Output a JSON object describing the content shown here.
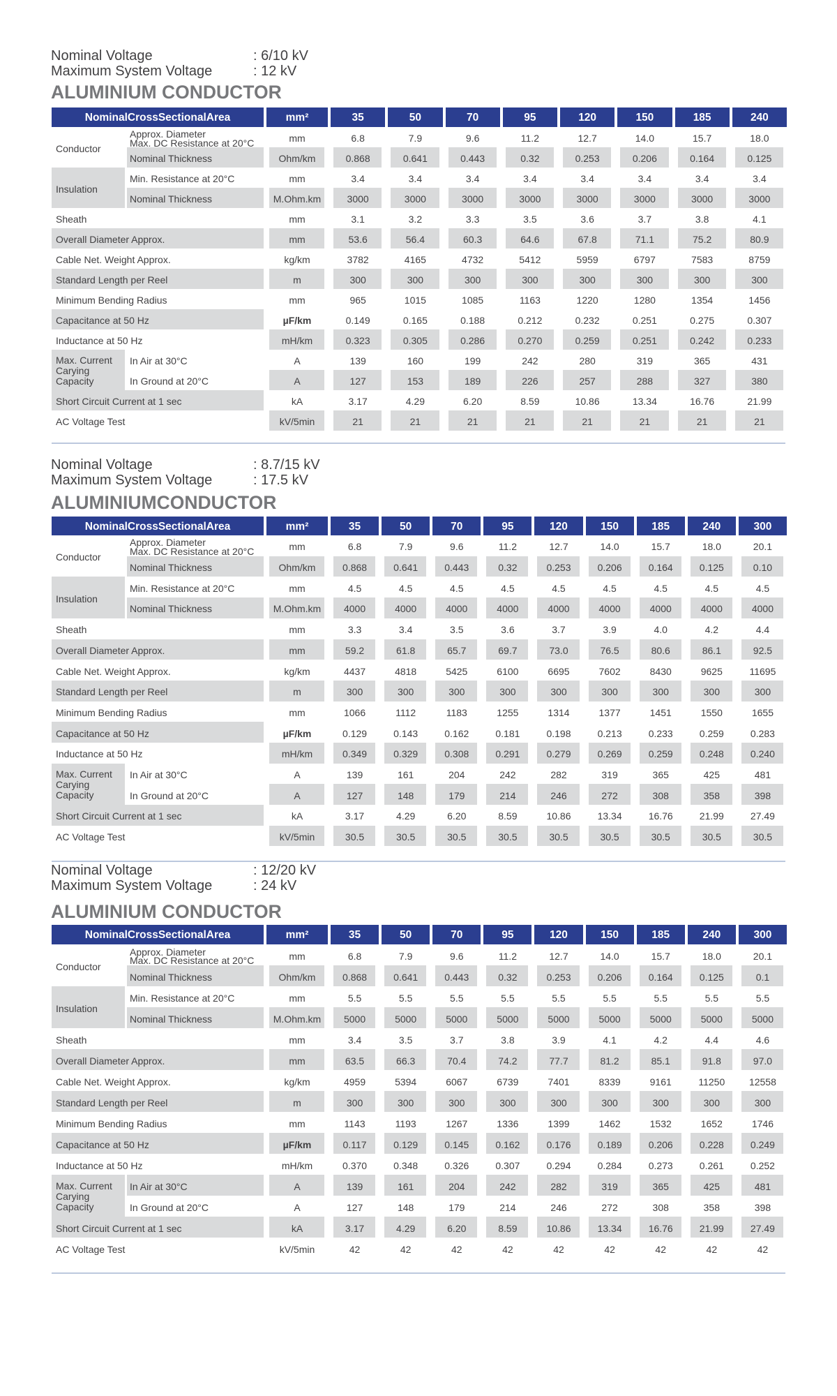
{
  "colors": {
    "header_bg": "#2b3e90",
    "header_text": "#ffffff",
    "stripe_gray": "#d9dadb",
    "body_text": "#414042",
    "title_gray": "#77787b",
    "divider_blue": "#bcc8de",
    "page_bg": "#ffffff"
  },
  "sections": [
    {
      "info": [
        {
          "label": "Nominal Voltage",
          "value": ": 6/10 kV"
        },
        {
          "label": "Maximum System Voltage",
          "value": ": 12 kV"
        }
      ],
      "title": "ALUMINIUM CONDUCTOR",
      "table": {
        "corner": "NominalCrossSectionalArea",
        "unit_col": "mm²",
        "columns": [
          "35",
          "50",
          "70",
          "95",
          "120",
          "150",
          "185",
          "240"
        ],
        "groups": [
          {
            "label": "Conductor",
            "start": 0,
            "span": 2,
            "gray": false
          },
          {
            "label": "Insulation",
            "start": 2,
            "span": 2,
            "gray": true
          },
          {
            "label": "Max. Current\nCarying\nCapacity",
            "start": 11,
            "span": 2,
            "gray": true
          }
        ],
        "rows": [
          {
            "sub": "Approx. Diameter\nMax. DC Resistance at 20°C",
            "unit": "mm",
            "values": [
              "6.8",
              "7.9",
              "9.6",
              "11.2",
              "12.7",
              "14.0",
              "15.7",
              "18.0"
            ]
          },
          {
            "sub": "Nominal Thickness",
            "unit": "Ohm/km",
            "values": [
              "0.868",
              "0.641",
              "0.443",
              "0.32",
              "0.253",
              "0.206",
              "0.164",
              "0.125"
            ]
          },
          {
            "sub": "Min. Resistance at 20°C",
            "unit": "mm",
            "values": [
              "3.4",
              "3.4",
              "3.4",
              "3.4",
              "3.4",
              "3.4",
              "3.4",
              "3.4"
            ]
          },
          {
            "sub": "Nominal Thickness",
            "unit": "M.Ohm.km",
            "values": [
              "3000",
              "3000",
              "3000",
              "3000",
              "3000",
              "3000",
              "3000",
              "3000"
            ]
          },
          {
            "label": "Sheath",
            "unit": "mm",
            "values": [
              "3.1",
              "3.2",
              "3.3",
              "3.5",
              "3.6",
              "3.7",
              "3.8",
              "4.1"
            ]
          },
          {
            "label": "Overall Diameter Approx.",
            "unit": "mm",
            "values": [
              "53.6",
              "56.4",
              "60.3",
              "64.6",
              "67.8",
              "71.1",
              "75.2",
              "80.9"
            ]
          },
          {
            "label": "Cable Net. Weight Approx.",
            "unit": "kg/km",
            "values": [
              "3782",
              "4165",
              "4732",
              "5412",
              "5959",
              "6797",
              "7583",
              "8759"
            ]
          },
          {
            "label": "Standard Length per Reel",
            "unit": "m",
            "values": [
              "300",
              "300",
              "300",
              "300",
              "300",
              "300",
              "300",
              "300"
            ]
          },
          {
            "label": "Minimum Bending Radius",
            "unit": "mm",
            "values": [
              "965",
              "1015",
              "1085",
              "1163",
              "1220",
              "1280",
              "1354",
              "1456"
            ]
          },
          {
            "label": "Capacitance at 50 Hz",
            "unit": "µF/km",
            "unit_bold": true,
            "values": [
              "0.149",
              "0.165",
              "0.188",
              "0.212",
              "0.232",
              "0.251",
              "0.275",
              "0.307"
            ]
          },
          {
            "label": "Inductance at 50 Hz",
            "unit": "mH/km",
            "values": [
              "0.323",
              "0.305",
              "0.286",
              "0.270",
              "0.259",
              "0.251",
              "0.242",
              "0.233"
            ]
          },
          {
            "sub": "In Air at 30°C",
            "unit": "A",
            "values": [
              "139",
              "160",
              "199",
              "242",
              "280",
              "319",
              "365",
              "431"
            ]
          },
          {
            "sub": "In Ground at 20°C",
            "unit": "A",
            "values": [
              "127",
              "153",
              "189",
              "226",
              "257",
              "288",
              "327",
              "380"
            ]
          },
          {
            "label": "Short Circuit Current at 1 sec",
            "unit": "kA",
            "values": [
              "3.17",
              "4.29",
              "6.20",
              "8.59",
              "10.86",
              "13.34",
              "16.76",
              "21.99"
            ]
          },
          {
            "label": "AC Voltage Test",
            "unit": "kV/5min",
            "values": [
              "21",
              "21",
              "21",
              "21",
              "21",
              "21",
              "21",
              "21"
            ]
          }
        ],
        "label_gray_rows": [
          1,
          3,
          5,
          7,
          9,
          13
        ],
        "data_gray_rows": [
          1,
          3,
          5,
          7,
          10,
          12,
          14
        ]
      }
    },
    {
      "info": [
        {
          "label": "Nominal Voltage",
          "value": ": 8.7/15 kV"
        },
        {
          "label": "Maximum System Voltage",
          "value": ": 17.5 kV"
        }
      ],
      "title": "ALUMINIUMCONDUCTOR",
      "table": {
        "corner": "NominalCrossSectionalArea",
        "unit_col": "mm²",
        "columns": [
          "35",
          "50",
          "70",
          "95",
          "120",
          "150",
          "185",
          "240",
          "300"
        ],
        "groups": [
          {
            "label": "Conductor",
            "start": 0,
            "span": 2,
            "gray": false
          },
          {
            "label": "Insulation",
            "start": 2,
            "span": 2,
            "gray": true
          },
          {
            "label": "Max. Current\nCarying\nCapacity",
            "start": 11,
            "span": 2,
            "gray": true
          }
        ],
        "rows": [
          {
            "sub": "Approx. Diameter\nMax. DC Resistance at 20°C",
            "unit": "mm",
            "values": [
              "6.8",
              "7.9",
              "9.6",
              "11.2",
              "12.7",
              "14.0",
              "15.7",
              "18.0",
              "20.1"
            ]
          },
          {
            "sub": "Nominal Thickness",
            "unit": "Ohm/km",
            "values": [
              "0.868",
              "0.641",
              "0.443",
              "0.32",
              "0.253",
              "0.206",
              "0.164",
              "0.125",
              "0.10"
            ]
          },
          {
            "sub": "Min. Resistance at 20°C",
            "unit": "mm",
            "values": [
              "4.5",
              "4.5",
              "4.5",
              "4.5",
              "4.5",
              "4.5",
              "4.5",
              "4.5",
              "4.5"
            ]
          },
          {
            "sub": "Nominal Thickness",
            "unit": "M.Ohm.km",
            "values": [
              "4000",
              "4000",
              "4000",
              "4000",
              "4000",
              "4000",
              "4000",
              "4000",
              "4000"
            ]
          },
          {
            "label": "Sheath",
            "unit": "mm",
            "values": [
              "3.3",
              "3.4",
              "3.5",
              "3.6",
              "3.7",
              "3.9",
              "4.0",
              "4.2",
              "4.4"
            ]
          },
          {
            "label": "Overall Diameter Approx.",
            "unit": "mm",
            "values": [
              "59.2",
              "61.8",
              "65.7",
              "69.7",
              "73.0",
              "76.5",
              "80.6",
              "86.1",
              "92.5"
            ]
          },
          {
            "label": "Cable Net. Weight Approx.",
            "unit": "kg/km",
            "values": [
              "4437",
              "4818",
              "5425",
              "6100",
              "6695",
              "7602",
              "8430",
              "9625",
              "11695"
            ]
          },
          {
            "label": "Standard Length per Reel",
            "unit": "m",
            "values": [
              "300",
              "300",
              "300",
              "300",
              "300",
              "300",
              "300",
              "300",
              "300"
            ]
          },
          {
            "label": "Minimum Bending Radius",
            "unit": "mm",
            "values": [
              "1066",
              "1112",
              "1183",
              "1255",
              "1314",
              "1377",
              "1451",
              "1550",
              "1655"
            ]
          },
          {
            "label": "Capacitance at 50 Hz",
            "unit": "µF/km",
            "unit_bold": true,
            "values": [
              "0.129",
              "0.143",
              "0.162",
              "0.181",
              "0.198",
              "0.213",
              "0.233",
              "0.259",
              "0.283"
            ]
          },
          {
            "label": "Inductance at 50 Hz",
            "unit": "mH/km",
            "values": [
              "0.349",
              "0.329",
              "0.308",
              "0.291",
              "0.279",
              "0.269",
              "0.259",
              "0.248",
              "0.240"
            ]
          },
          {
            "sub": "In Air at 30°C",
            "unit": "A",
            "values": [
              "139",
              "161",
              "204",
              "242",
              "282",
              "319",
              "365",
              "425",
              "481"
            ]
          },
          {
            "sub": "In Ground at 20°C",
            "unit": "A",
            "values": [
              "127",
              "148",
              "179",
              "214",
              "246",
              "272",
              "308",
              "358",
              "398"
            ]
          },
          {
            "label": "Short Circuit Current at 1 sec",
            "unit": "kA",
            "values": [
              "3.17",
              "4.29",
              "6.20",
              "8.59",
              "10.86",
              "13.34",
              "16.76",
              "21.99",
              "27.49"
            ]
          },
          {
            "label": "AC Voltage Test",
            "unit": "kV/5min",
            "values": [
              "30.5",
              "30.5",
              "30.5",
              "30.5",
              "30.5",
              "30.5",
              "30.5",
              "30.5",
              "30.5"
            ]
          }
        ],
        "label_gray_rows": [
          1,
          3,
          5,
          7,
          9,
          13
        ],
        "data_gray_rows": [
          1,
          3,
          5,
          7,
          10,
          12,
          14
        ]
      }
    },
    {
      "info": [
        {
          "label": "Nominal Voltage",
          "value": ": 12/20 kV"
        },
        {
          "label": "Maximum System Voltage",
          "value": ": 24 kV"
        }
      ],
      "title": "ALUMINIUM CONDUCTOR",
      "table": {
        "corner": "NominalCrossSectionalArea",
        "unit_col": "mm²",
        "columns": [
          "35",
          "50",
          "70",
          "95",
          "120",
          "150",
          "185",
          "240",
          "300"
        ],
        "groups": [
          {
            "label": "Conductor",
            "start": 0,
            "span": 2,
            "gray": false
          },
          {
            "label": "Insulation",
            "start": 2,
            "span": 2,
            "gray": true
          },
          {
            "label": "Max. Current\nCarying\nCapacity",
            "start": 11,
            "span": 2,
            "gray": true
          }
        ],
        "rows": [
          {
            "sub": "Approx. Diameter\nMax. DC Resistance at 20°C",
            "unit": "mm",
            "values": [
              "6.8",
              "7.9",
              "9.6",
              "11.2",
              "12.7",
              "14.0",
              "15.7",
              "18.0",
              "20.1"
            ]
          },
          {
            "sub": "Nominal Thickness",
            "unit": "Ohm/km",
            "values": [
              "0.868",
              "0.641",
              "0.443",
              "0.32",
              "0.253",
              "0.206",
              "0.164",
              "0.125",
              "0.1"
            ]
          },
          {
            "sub": "Min. Resistance at 20°C",
            "unit": "mm",
            "values": [
              "5.5",
              "5.5",
              "5.5",
              "5.5",
              "5.5",
              "5.5",
              "5.5",
              "5.5",
              "5.5"
            ]
          },
          {
            "sub": "Nominal Thickness",
            "unit": "M.Ohm.km",
            "values": [
              "5000",
              "5000",
              "5000",
              "5000",
              "5000",
              "5000",
              "5000",
              "5000",
              "5000"
            ]
          },
          {
            "label": "Sheath",
            "unit": "mm",
            "values": [
              "3.4",
              "3.5",
              "3.7",
              "3.8",
              "3.9",
              "4.1",
              "4.2",
              "4.4",
              "4.6"
            ]
          },
          {
            "label": "Overall Diameter Approx.",
            "unit": "mm",
            "values": [
              "63.5",
              "66.3",
              "70.4",
              "74.2",
              "77.7",
              "81.2",
              "85.1",
              "91.8",
              "97.0"
            ]
          },
          {
            "label": "Cable Net. Weight Approx.",
            "unit": "kg/km",
            "values": [
              "4959",
              "5394",
              "6067",
              "6739",
              "7401",
              "8339",
              "9161",
              "11250",
              "12558"
            ]
          },
          {
            "label": "Standard Length per Reel",
            "unit": "m",
            "values": [
              "300",
              "300",
              "300",
              "300",
              "300",
              "300",
              "300",
              "300",
              "300"
            ]
          },
          {
            "label": "Minimum Bending Radius",
            "unit": "mm",
            "values": [
              "1143",
              "1193",
              "1267",
              "1336",
              "1399",
              "1462",
              "1532",
              "1652",
              "1746"
            ]
          },
          {
            "label": "Capacitance at 50 Hz",
            "unit": "µF/km",
            "unit_bold": true,
            "values": [
              "0.117",
              "0.129",
              "0.145",
              "0.162",
              "0.176",
              "0.189",
              "0.206",
              "0.228",
              "0.249"
            ]
          },
          {
            "label": "Inductance at 50 Hz",
            "unit": "mH/km",
            "values": [
              "0.370",
              "0.348",
              "0.326",
              "0.307",
              "0.294",
              "0.284",
              "0.273",
              "0.261",
              "0.252"
            ]
          },
          {
            "sub": "In Air at 30°C",
            "unit": "A",
            "values": [
              "139",
              "161",
              "204",
              "242",
              "282",
              "319",
              "365",
              "425",
              "481"
            ]
          },
          {
            "sub": "In Ground at 20°C",
            "unit": "A",
            "values": [
              "127",
              "148",
              "179",
              "214",
              "246",
              "272",
              "308",
              "358",
              "398"
            ]
          },
          {
            "label": "Short Circuit Current at 1 sec",
            "unit": "kA",
            "values": [
              "3.17",
              "4.29",
              "6.20",
              "8.59",
              "10.86",
              "13.34",
              "16.76",
              "21.99",
              "27.49"
            ]
          },
          {
            "label": "AC Voltage Test",
            "unit": "kV/5min",
            "values": [
              "42",
              "42",
              "42",
              "42",
              "42",
              "42",
              "42",
              "42",
              "42"
            ]
          }
        ],
        "label_gray_rows": [
          1,
          3,
          5,
          7,
          9,
          11,
          13
        ],
        "data_gray_rows": [
          1,
          3,
          5,
          7,
          9,
          11,
          13
        ]
      }
    }
  ]
}
